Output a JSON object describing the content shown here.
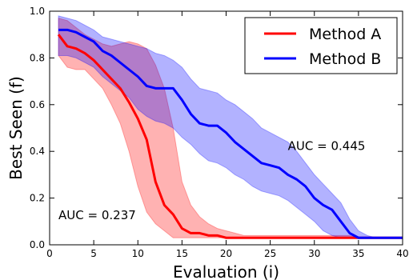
{
  "chart_data": {
    "type": "line",
    "xlabel": "Evaluation (i)",
    "ylabel": "Best Seen (f)",
    "xlim": [
      0,
      40
    ],
    "ylim": [
      0.0,
      1.0
    ],
    "xticks": [
      "0",
      "5",
      "10",
      "15",
      "20",
      "25",
      "30",
      "35",
      "40"
    ],
    "yticks": [
      "0.0",
      "0.2",
      "0.4",
      "0.6",
      "0.8",
      "1.0"
    ],
    "grid": false,
    "legend_position": "top-right",
    "series": [
      {
        "name": "Method A",
        "color": "#ff0000",
        "x": [
          1,
          2,
          3,
          4,
          5,
          6,
          7,
          8,
          9,
          10,
          11,
          12,
          13,
          14,
          15,
          16,
          17,
          18,
          19,
          20,
          21,
          22,
          23,
          24,
          25,
          26,
          27,
          28,
          29,
          30,
          31,
          32,
          33,
          34,
          35,
          36,
          37,
          38,
          39,
          40
        ],
        "values": [
          0.9,
          0.85,
          0.84,
          0.82,
          0.79,
          0.75,
          0.71,
          0.67,
          0.61,
          0.54,
          0.45,
          0.27,
          0.17,
          0.13,
          0.07,
          0.05,
          0.05,
          0.04,
          0.04,
          0.03,
          0.03,
          0.03,
          0.03,
          0.03,
          0.03,
          0.03,
          0.03,
          0.03,
          0.03,
          0.03,
          0.03,
          0.03,
          0.03,
          0.03,
          0.03,
          0.03,
          0.03,
          0.03,
          0.03,
          0.03
        ],
        "upper": [
          0.97,
          0.96,
          0.93,
          0.9,
          0.88,
          0.86,
          0.85,
          0.86,
          0.87,
          0.86,
          0.84,
          0.77,
          0.67,
          0.5,
          0.27,
          0.17,
          0.12,
          0.09,
          0.07,
          0.06,
          0.05,
          0.04,
          0.04,
          0.04,
          0.04,
          0.04,
          0.04,
          0.04,
          0.04,
          0.04,
          0.04,
          0.04,
          0.04,
          0.04,
          0.03,
          0.03,
          0.03,
          0.03,
          0.03,
          0.03
        ],
        "lower": [
          0.81,
          0.76,
          0.75,
          0.75,
          0.71,
          0.67,
          0.6,
          0.52,
          0.4,
          0.25,
          0.14,
          0.09,
          0.06,
          0.03,
          0.03,
          0.03,
          0.03,
          0.03,
          0.03,
          0.03,
          0.03,
          0.03,
          0.03,
          0.03,
          0.03,
          0.03,
          0.03,
          0.03,
          0.03,
          0.03,
          0.03,
          0.03,
          0.03,
          0.03,
          0.03,
          0.03,
          0.03,
          0.03,
          0.03,
          0.03
        ]
      },
      {
        "name": "Method B",
        "color": "#0000ff",
        "x": [
          1,
          2,
          3,
          4,
          5,
          6,
          7,
          8,
          9,
          10,
          11,
          12,
          13,
          14,
          15,
          16,
          17,
          18,
          19,
          20,
          21,
          22,
          23,
          24,
          25,
          26,
          27,
          28,
          29,
          30,
          31,
          32,
          33,
          34,
          35,
          36,
          37,
          38,
          39,
          40
        ],
        "values": [
          0.92,
          0.92,
          0.91,
          0.89,
          0.87,
          0.83,
          0.81,
          0.78,
          0.75,
          0.72,
          0.68,
          0.67,
          0.67,
          0.67,
          0.62,
          0.56,
          0.52,
          0.51,
          0.51,
          0.48,
          0.44,
          0.41,
          0.38,
          0.35,
          0.34,
          0.33,
          0.3,
          0.28,
          0.25,
          0.2,
          0.17,
          0.15,
          0.1,
          0.05,
          0.03,
          0.03,
          0.03,
          0.03,
          0.03,
          0.03
        ],
        "upper": [
          0.98,
          0.97,
          0.96,
          0.94,
          0.92,
          0.89,
          0.88,
          0.87,
          0.86,
          0.85,
          0.84,
          0.82,
          0.81,
          0.79,
          0.76,
          0.71,
          0.67,
          0.66,
          0.65,
          0.62,
          0.6,
          0.57,
          0.54,
          0.5,
          0.48,
          0.46,
          0.44,
          0.4,
          0.35,
          0.3,
          0.26,
          0.22,
          0.18,
          0.11,
          0.06,
          0.04,
          0.03,
          0.03,
          0.03,
          0.03
        ],
        "lower": [
          0.81,
          0.81,
          0.8,
          0.78,
          0.76,
          0.72,
          0.69,
          0.66,
          0.63,
          0.58,
          0.55,
          0.53,
          0.52,
          0.5,
          0.46,
          0.43,
          0.39,
          0.36,
          0.35,
          0.33,
          0.3,
          0.28,
          0.25,
          0.23,
          0.22,
          0.21,
          0.19,
          0.16,
          0.13,
          0.1,
          0.06,
          0.04,
          0.03,
          0.03,
          0.03,
          0.03,
          0.03,
          0.03,
          0.03,
          0.03
        ]
      }
    ],
    "annotations": [
      {
        "text": "AUC = 0.237",
        "x": 1,
        "y": 0.11
      },
      {
        "text": "AUC = 0.445",
        "x": 27,
        "y": 0.405
      }
    ]
  }
}
